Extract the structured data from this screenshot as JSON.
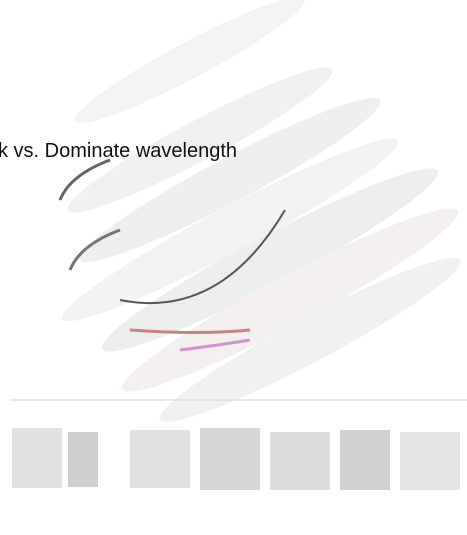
{
  "title": "k vs. Dominate wavelength"
}
